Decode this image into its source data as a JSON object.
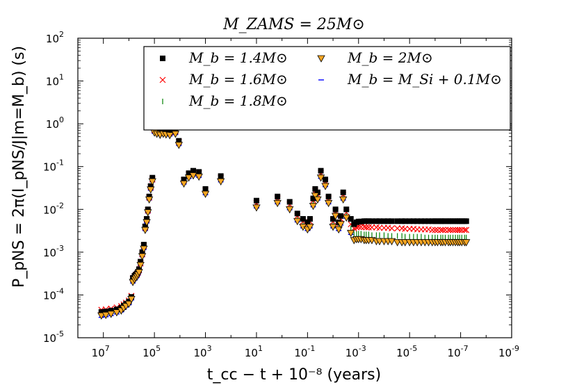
{
  "chart_data": {
    "type": "scatter",
    "title": "M_ZAMS = 25M⊙",
    "xlabel": "t_cc − t + 10⁻⁸ (years)",
    "ylabel": "P_pNS = 2π(I_pNS/J|m=M_b) (s)",
    "x_scale": "log",
    "y_scale": "log",
    "x_axis_reversed": true,
    "xlim": [
      100000000.0,
      1e-09
    ],
    "ylim": [
      1e-05,
      100
    ],
    "x_ticks": [
      {
        "value": 10000000.0,
        "base": "10",
        "exp": "7"
      },
      {
        "value": 100000.0,
        "base": "10",
        "exp": "5"
      },
      {
        "value": 1000.0,
        "base": "10",
        "exp": "3"
      },
      {
        "value": 10.0,
        "base": "10",
        "exp": "1"
      },
      {
        "value": 0.1,
        "base": "10",
        "exp": "-1"
      },
      {
        "value": 0.001,
        "base": "10",
        "exp": "-3"
      },
      {
        "value": 1e-05,
        "base": "10",
        "exp": "-5"
      },
      {
        "value": 1e-07,
        "base": "10",
        "exp": "-7"
      },
      {
        "value": 1e-09,
        "base": "10",
        "exp": "-9"
      }
    ],
    "y_ticks": [
      {
        "value": 1e-05,
        "base": "10",
        "exp": "-5"
      },
      {
        "value": 0.0001,
        "base": "10",
        "exp": "-4"
      },
      {
        "value": 0.001,
        "base": "10",
        "exp": "-3"
      },
      {
        "value": 0.01,
        "base": "10",
        "exp": "-2"
      },
      {
        "value": 0.1,
        "base": "10",
        "exp": "-1"
      },
      {
        "value": 1,
        "base": "10",
        "exp": "0"
      },
      {
        "value": 10,
        "base": "10",
        "exp": "1"
      },
      {
        "value": 100,
        "base": "10",
        "exp": "2"
      }
    ],
    "legend_position": "top-right",
    "grid": false,
    "x": [
      12000000.0,
      8000000.0,
      5000000.0,
      3000000.0,
      2000000.0,
      1600000.0,
      1300000.0,
      1000000.0,
      800000.0,
      700000.0,
      600000.0,
      540000.0,
      480000.0,
      440000.0,
      400000.0,
      350000.0,
      300000.0,
      260000.0,
      230000.0,
      200000.0,
      180000.0,
      160000.0,
      140000.0,
      120000.0,
      100000.0,
      80000.0,
      60000.0,
      45000.0,
      35000.0,
      25000.0,
      15000.0,
      11000.0,
      7000.0,
      4500.0,
      3000.0,
      1800.0,
      1000.0,
      250.0,
      10,
      1.5,
      0.5,
      0.25,
      0.15,
      0.1,
      0.08,
      0.06,
      0.05,
      0.04,
      0.03,
      0.02,
      0.015,
      0.01,
      0.008,
      0.006,
      0.005,
      0.004,
      0.003,
      0.002,
      0.0015,
      0.0012,
      0.001,
      0.0008,
      0.0006,
      0.0005,
      0.0004,
      0.0003,
      0.0002,
      0.00015,
      0.0001,
      7e-05,
      5e-05,
      3e-05,
      2e-05,
      1.5e-05,
      1e-05,
      7e-06,
      5e-06,
      3.5e-06,
      2.5e-06,
      1.8e-06,
      1.3e-06,
      1e-06,
      8e-07,
      6e-07,
      5e-07,
      4e-07,
      3e-07,
      2.5e-07,
      2e-07,
      1.6e-07,
      1.3e-07,
      1.1e-07,
      9e-08,
      7e-08,
      6e-08
    ],
    "series": [
      {
        "name": "M_b = 1.4M⊙",
        "marker": "square",
        "color": "#000000",
        "y": [
          4e-05,
          4.1e-05,
          4.3e-05,
          4.6e-05,
          5e-05,
          5.6e-05,
          6.2e-05,
          7e-05,
          9e-05,
          0.00025,
          0.00028,
          0.0003,
          0.00032,
          0.00035,
          0.0004,
          0.0006,
          0.001,
          0.0015,
          0.004,
          0.006,
          0.01,
          0.02,
          0.035,
          0.055,
          0.75,
          0.7,
          0.65,
          0.7,
          0.68,
          0.65,
          0.7,
          0.4,
          0.05,
          0.07,
          0.08,
          0.075,
          0.03,
          0.06,
          0.016,
          0.02,
          0.015,
          0.008,
          0.006,
          0.005,
          0.006,
          0.018,
          0.03,
          0.025,
          0.08,
          0.05,
          0.02,
          0.006,
          0.01,
          0.005,
          0.007,
          0.025,
          0.01,
          0.006,
          0.0045,
          0.005,
          0.0052,
          0.0052,
          0.0053,
          0.0053,
          0.0053,
          0.0053,
          0.0053,
          0.0053,
          0.0053,
          0.0053,
          0.0053,
          0.0053,
          0.0053,
          0.0053,
          0.0053,
          0.0053,
          0.0053,
          0.0053,
          0.0053,
          0.0053,
          0.0053,
          0.0053,
          0.0053,
          0.0053,
          0.0053,
          0.0053,
          0.0053,
          0.0053,
          0.0053,
          0.0053,
          0.0053,
          0.0053,
          0.0053,
          0.0053,
          0.0053
        ]
      },
      {
        "name": "M_b = 1.6M⊙",
        "marker": "x",
        "color": "#ff0000",
        "y": [
          4.5e-05,
          4.6e-05,
          4.8e-05,
          5.1e-05,
          5.5e-05,
          6e-05,
          6.6e-05,
          7.4e-05,
          9.5e-05,
          0.00024,
          0.00027,
          0.00029,
          0.00031,
          0.00034,
          0.00038,
          0.00055,
          0.0009,
          0.0014,
          0.0038,
          0.0058,
          0.0095,
          0.019,
          0.033,
          0.05,
          0.72,
          0.68,
          0.63,
          0.67,
          0.65,
          0.62,
          0.67,
          0.38,
          0.048,
          0.066,
          0.075,
          0.07,
          0.028,
          0.055,
          0.014,
          0.018,
          0.013,
          0.007,
          0.0052,
          0.0045,
          0.0052,
          0.016,
          0.027,
          0.022,
          0.07,
          0.045,
          0.018,
          0.0052,
          0.009,
          0.0045,
          0.006,
          0.022,
          0.0085,
          0.0045,
          0.0036,
          0.0038,
          0.0039,
          0.0039,
          0.0039,
          0.0038,
          0.0038,
          0.0038,
          0.0038,
          0.0037,
          0.0037,
          0.0037,
          0.0036,
          0.0036,
          0.0036,
          0.0035,
          0.0035,
          0.0035,
          0.0034,
          0.0034,
          0.0034,
          0.0034,
          0.0033,
          0.0033,
          0.0033,
          0.0033,
          0.0033,
          0.0033,
          0.0033,
          0.0033,
          0.0033,
          0.0033,
          0.0033,
          0.0033,
          0.0033,
          0.0033,
          0.0033
        ]
      },
      {
        "name": "M_b = 1.8M⊙",
        "marker": "vline",
        "color": "#008000",
        "y": [
          3.6e-05,
          3.7e-05,
          3.9e-05,
          4.2e-05,
          4.6e-05,
          5.2e-05,
          5.8e-05,
          6.6e-05,
          8.5e-05,
          0.00022,
          0.00025,
          0.00027,
          0.00029,
          0.00032,
          0.00036,
          0.00052,
          0.00085,
          0.0013,
          0.0036,
          0.0055,
          0.009,
          0.018,
          0.031,
          0.048,
          0.68,
          0.64,
          0.6,
          0.64,
          0.62,
          0.6,
          0.64,
          0.36,
          0.045,
          0.062,
          0.07,
          0.066,
          0.026,
          0.052,
          0.013,
          0.016,
          0.012,
          0.0062,
          0.0046,
          0.004,
          0.0046,
          0.014,
          0.024,
          0.02,
          0.062,
          0.04,
          0.016,
          0.0046,
          0.0082,
          0.004,
          0.0052,
          0.02,
          0.0075,
          0.0036,
          0.0026,
          0.0027,
          0.0027,
          0.0027,
          0.0026,
          0.0026,
          0.0026,
          0.0025,
          0.0025,
          0.0025,
          0.0025,
          0.0024,
          0.0024,
          0.0024,
          0.0024,
          0.0023,
          0.0023,
          0.0023,
          0.0023,
          0.0023,
          0.0022,
          0.0022,
          0.0022,
          0.0022,
          0.0022,
          0.0022,
          0.0022,
          0.0022,
          0.0022,
          0.0022,
          0.0022,
          0.0022,
          0.0022,
          0.0022,
          0.0022,
          0.0022,
          0.0022
        ]
      },
      {
        "name": "M_b = 2M⊙",
        "marker": "triangle-down",
        "color": "#f5a623",
        "y": [
          3.3e-05,
          3.4e-05,
          3.6e-05,
          3.9e-05,
          4.3e-05,
          4.9e-05,
          5.5e-05,
          6.2e-05,
          8e-05,
          0.0002,
          0.00023,
          0.00025,
          0.00027,
          0.0003,
          0.00034,
          0.0005,
          0.0008,
          0.0012,
          0.0033,
          0.005,
          0.0085,
          0.017,
          0.029,
          0.045,
          0.62,
          0.58,
          0.55,
          0.58,
          0.56,
          0.54,
          0.58,
          0.32,
          0.04,
          0.055,
          0.062,
          0.058,
          0.023,
          0.045,
          0.011,
          0.014,
          0.01,
          0.0053,
          0.0039,
          0.0034,
          0.0039,
          0.012,
          0.021,
          0.017,
          0.055,
          0.035,
          0.014,
          0.0039,
          0.007,
          0.0034,
          0.0045,
          0.017,
          0.0064,
          0.0028,
          0.0019,
          0.002,
          0.002,
          0.002,
          0.0019,
          0.0019,
          0.0019,
          0.0019,
          0.0018,
          0.0018,
          0.0018,
          0.0018,
          0.0018,
          0.0017,
          0.0017,
          0.0017,
          0.0017,
          0.0017,
          0.0017,
          0.0017,
          0.0017,
          0.0017,
          0.0017,
          0.0017,
          0.0017,
          0.0017,
          0.0017,
          0.0017,
          0.0017,
          0.0017,
          0.0017,
          0.0017,
          0.0017,
          0.0017,
          0.0017,
          0.0017,
          0.0017
        ]
      },
      {
        "name": "M_b = M_Si + 0.1M⊙",
        "marker": "hline",
        "color": "#0000ff",
        "y": [
          3e-05,
          3.1e-05,
          3.3e-05,
          3.6e-05,
          4e-05,
          4.6e-05,
          5.2e-05,
          5.9e-05,
          7.6e-05,
          0.00019,
          0.00022,
          0.00024,
          0.00026,
          0.00029,
          0.00033,
          0.00048,
          0.00078,
          0.00115,
          0.0032,
          0.0048,
          0.0082,
          0.0165,
          0.028,
          0.044,
          0.6,
          0.56,
          0.53,
          0.56,
          0.54,
          0.52,
          0.56,
          0.31,
          0.039,
          0.053,
          0.06,
          0.056,
          0.022,
          0.044,
          0.0108,
          0.0135,
          0.0098,
          0.0051,
          0.0037,
          0.0032,
          0.0037,
          0.0115,
          0.02,
          0.0165,
          0.053,
          0.034,
          0.0135,
          0.0037,
          0.0068,
          0.0032,
          0.0043,
          0.0165,
          0.0062,
          0.0026,
          0.0021,
          0.0022,
          0.0022,
          0.0022,
          0.0021,
          0.0021,
          0.0021,
          0.0021,
          0.002,
          0.002,
          0.002,
          0.002,
          0.002,
          0.0019,
          0.0019,
          0.0019,
          0.0019,
          0.0019,
          0.0019,
          0.0019,
          0.0019,
          0.0019,
          0.0019,
          0.0019,
          0.0019,
          0.0019,
          0.0019,
          0.0019,
          0.0019,
          0.0019,
          0.0019,
          0.0019,
          0.0019,
          0.0019,
          0.0019,
          0.0019,
          0.0019
        ]
      }
    ]
  }
}
